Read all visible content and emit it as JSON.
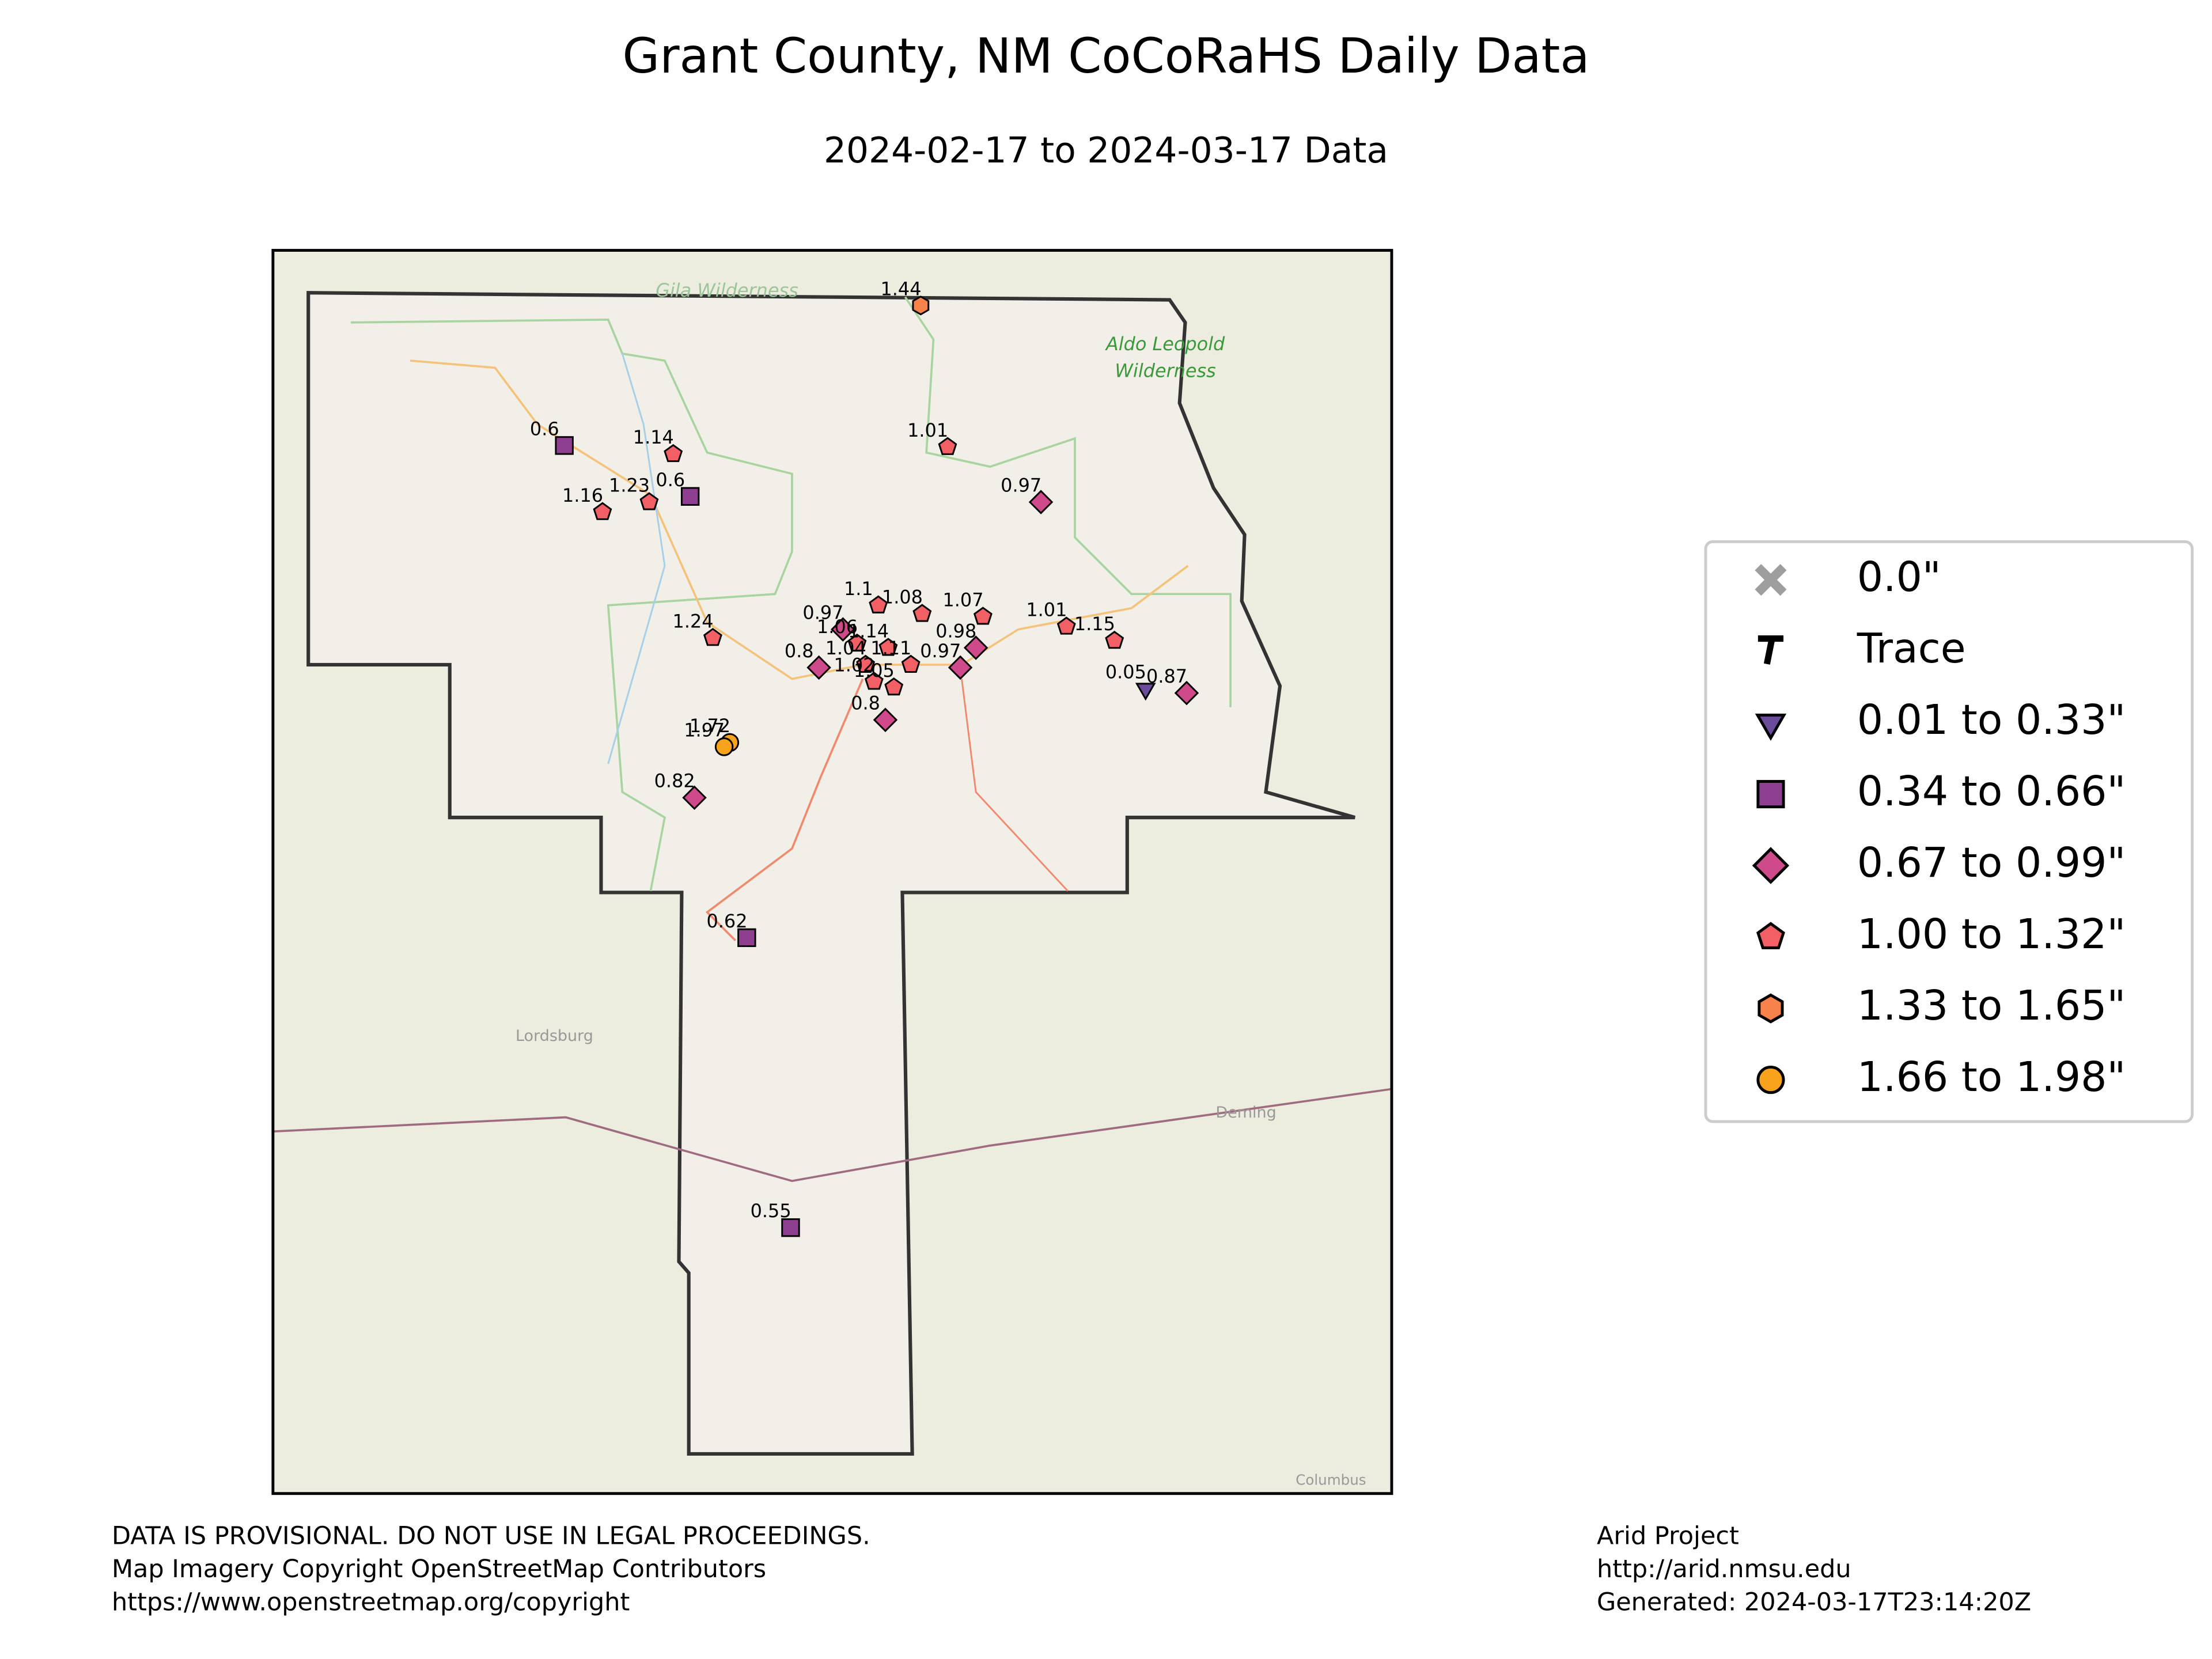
{
  "title": "Grant County, NM CoCoRaHS Daily Data",
  "subtitle": "2024-02-17 to 2024-03-17 Data",
  "map_labels": [
    "Gila Wilderness",
    "Aldo Leopold",
    "Wilderness",
    "Lordsburg",
    "Deming",
    "Columbus"
  ],
  "legend": [
    {
      "label": "0.0\"",
      "marker": "x",
      "color": "#9e9e9e"
    },
    {
      "label": "Trace",
      "marker": "t",
      "color": "#000000"
    },
    {
      "label": "0.01 to 0.33\"",
      "marker": "triangle",
      "color": "#6b4c9a"
    },
    {
      "label": "0.34 to 0.66\"",
      "marker": "square",
      "color": "#8e3f8f"
    },
    {
      "label": "0.67 to 0.99\"",
      "marker": "diamond",
      "color": "#cf4a8b"
    },
    {
      "label": "1.00 to 1.32\"",
      "marker": "pentagon",
      "color": "#f25f65"
    },
    {
      "label": "1.33 to 1.65\"",
      "marker": "hexagon",
      "color": "#f7834a"
    },
    {
      "label": "1.66 to 1.98\"",
      "marker": "circle",
      "color": "#f9a21c"
    }
  ],
  "stations": [
    {
      "value": 1.44,
      "class": 6
    },
    {
      "value": 0.6,
      "class": 3
    },
    {
      "value": 1.14,
      "class": 5
    },
    {
      "value": 0.6,
      "class": 3
    },
    {
      "value": 1.23,
      "class": 5
    },
    {
      "value": 1.16,
      "class": 5
    },
    {
      "value": 1.01,
      "class": 5
    },
    {
      "value": 0.97,
      "class": 4
    },
    {
      "value": 1.24,
      "class": 5
    },
    {
      "value": 1.08,
      "class": 5
    },
    {
      "value": 1.1,
      "class": 5
    },
    {
      "value": 1.07,
      "class": 5
    },
    {
      "value": 0.98,
      "class": 4
    },
    {
      "value": 0.97,
      "class": 4
    },
    {
      "value": 1.01,
      "class": 5
    },
    {
      "value": 1.15,
      "class": 5
    },
    {
      "value": 0.05,
      "class": 2
    },
    {
      "value": 0.87,
      "class": 4
    },
    {
      "value": 1.72,
      "class": 7
    },
    {
      "value": 1.97,
      "class": 7
    },
    {
      "value": 0.82,
      "class": 4
    },
    {
      "value": 0.62,
      "class": 3
    },
    {
      "value": 0.55,
      "class": 3
    },
    {
      "value": 0.8,
      "class": 4
    },
    {
      "value": 0.8,
      "class": 4
    },
    {
      "value": 0.97,
      "class": 4
    },
    {
      "value": 1.06,
      "class": 5
    },
    {
      "value": 1.04,
      "class": 5
    },
    {
      "value": 1.14,
      "class": 5
    },
    {
      "value": 1.02,
      "class": 5
    },
    {
      "value": 1.11,
      "class": 5
    },
    {
      "value": 1.05,
      "class": 5
    }
  ],
  "footer_left": [
    "DATA IS PROVISIONAL. DO NOT USE IN LEGAL PROCEEDINGS.",
    "Map Imagery Copyright OpenStreetMap Contributors",
    "https://www.openstreetmap.org/copyright"
  ],
  "footer_right": [
    "Arid Project",
    "http://arid.nmsu.edu",
    "Generated: 2024-03-17T23:14:20Z"
  ]
}
